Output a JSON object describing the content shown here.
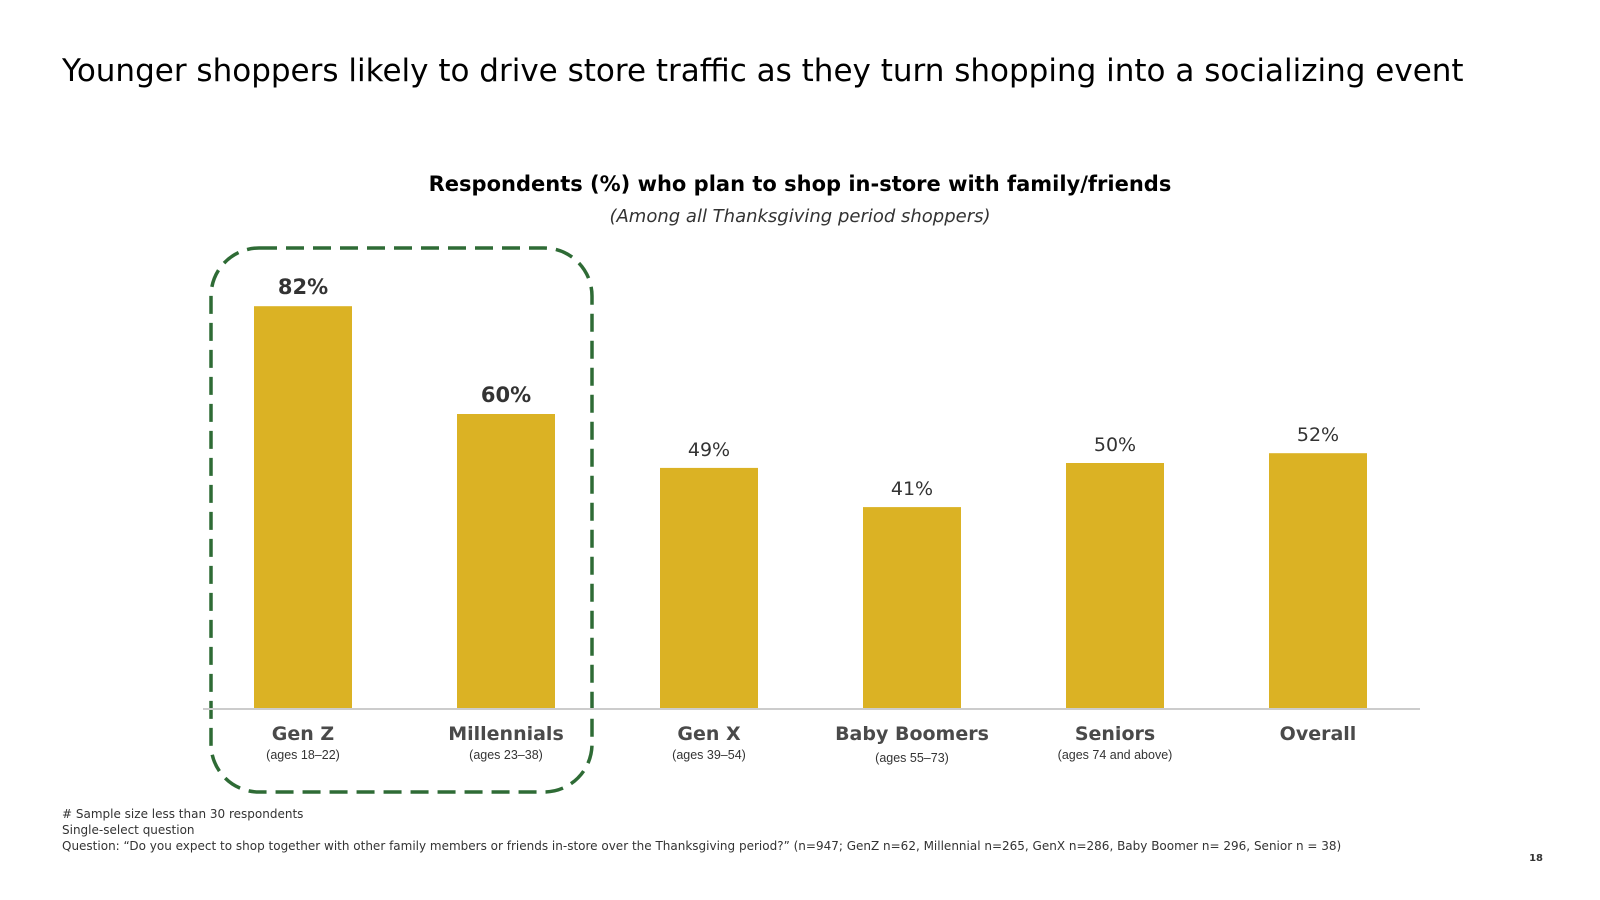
{
  "slide": {
    "title": "Younger shoppers likely to drive store traffic as they turn shopping into a socializing event",
    "page_number": "18"
  },
  "colors": {
    "bar": "#DBB224",
    "highlight_text": "#2E6B35",
    "highlight_box": "#2E6B35",
    "axis": "#cccccc"
  },
  "chart_data": {
    "type": "bar",
    "title": "Respondents (%) who plan to shop in-store with family/friends",
    "subtitle": "(Among all Thanksgiving period shoppers)",
    "categories": [
      "Gen Z",
      "Millennials",
      "Gen X",
      "Baby Boomers",
      "Seniors",
      "Overall"
    ],
    "category_sublabels": [
      "(ages 18–22)",
      "(ages 23–38)",
      "(ages 39–54)",
      "(ages 55–73)",
      "(ages 74 and above)",
      ""
    ],
    "values": [
      82,
      60,
      49,
      41,
      50,
      52
    ],
    "value_labels": [
      "82%",
      "60%",
      "49%",
      "41%",
      "50%",
      "52%"
    ],
    "highlighted": [
      "Gen Z",
      "Millennials"
    ],
    "ylim": [
      0,
      100
    ],
    "grid": false,
    "legend": "none",
    "xlabel": "",
    "ylabel": ""
  },
  "footnotes": [
    "# Sample size less than 30 respondents",
    "Single-select question",
    "Question: “Do you expect to shop together with other family members or friends in-store over the Thanksgiving period?” (n=947; GenZ n=62, Millennial n=265, GenX n=286, Baby Boomer n= 296, Senior n = 38)"
  ]
}
